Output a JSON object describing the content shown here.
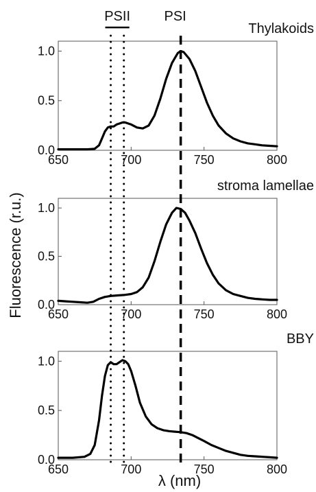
{
  "figure": {
    "ylabel": "Fluorescence (r.u.)",
    "xlabel": "λ (nm)",
    "markers": {
      "psii_label": "PSII",
      "psi_label": "PSI",
      "psii_lines_nm": [
        686,
        695
      ],
      "psi_line_nm": 734
    }
  },
  "chart_data": [
    {
      "type": "line",
      "panel_label": "Thylakoids",
      "xlim": [
        650,
        800
      ],
      "ylim": [
        0,
        1.1
      ],
      "xticks": [
        "650",
        "700",
        "750",
        "800"
      ],
      "yticks": [
        "0.0",
        "0.5",
        "1.0"
      ],
      "series": [
        {
          "color": "#000000",
          "x": [
            650,
            660,
            670,
            675,
            678,
            680,
            682,
            684,
            686,
            688,
            690,
            692,
            694,
            696,
            698,
            700,
            704,
            708,
            712,
            716,
            720,
            724,
            728,
            732,
            734,
            736,
            740,
            744,
            748,
            752,
            756,
            760,
            765,
            770,
            775,
            780,
            785,
            790,
            795,
            800
          ],
          "y": [
            0.01,
            0.01,
            0.01,
            0.015,
            0.05,
            0.12,
            0.19,
            0.23,
            0.24,
            0.24,
            0.26,
            0.27,
            0.28,
            0.28,
            0.27,
            0.26,
            0.23,
            0.22,
            0.25,
            0.35,
            0.52,
            0.72,
            0.88,
            0.98,
            1.0,
            0.99,
            0.92,
            0.8,
            0.64,
            0.48,
            0.35,
            0.25,
            0.17,
            0.12,
            0.09,
            0.07,
            0.06,
            0.05,
            0.045,
            0.04
          ]
        }
      ]
    },
    {
      "type": "line",
      "panel_label": "stroma lamellae",
      "xlim": [
        650,
        800
      ],
      "ylim": [
        0,
        1.1
      ],
      "xticks": [
        "650",
        "700",
        "750",
        "800"
      ],
      "yticks": [
        "0.0",
        "0.5",
        "1.0"
      ],
      "series": [
        {
          "color": "#000000",
          "x": [
            650,
            655,
            660,
            665,
            670,
            674,
            678,
            682,
            686,
            690,
            695,
            700,
            704,
            708,
            712,
            716,
            720,
            724,
            728,
            731,
            734,
            737,
            740,
            744,
            748,
            752,
            756,
            760,
            765,
            770,
            775,
            780,
            785,
            790,
            795,
            800
          ],
          "y": [
            0.04,
            0.035,
            0.03,
            0.025,
            0.02,
            0.03,
            0.06,
            0.08,
            0.09,
            0.095,
            0.1,
            0.11,
            0.13,
            0.18,
            0.28,
            0.45,
            0.65,
            0.83,
            0.95,
            1.0,
            0.99,
            0.95,
            0.87,
            0.74,
            0.58,
            0.43,
            0.31,
            0.22,
            0.15,
            0.11,
            0.09,
            0.07,
            0.06,
            0.055,
            0.05,
            0.05
          ]
        }
      ]
    },
    {
      "type": "line",
      "panel_label": "BBY",
      "xlim": [
        650,
        800
      ],
      "ylim": [
        0,
        1.1
      ],
      "xticks": [
        "650",
        "700",
        "750",
        "800"
      ],
      "yticks": [
        "0.0",
        "0.5",
        "1.0"
      ],
      "series": [
        {
          "color": "#000000",
          "x": [
            650,
            660,
            668,
            672,
            675,
            678,
            680,
            682,
            684,
            686,
            688,
            690,
            692,
            694,
            696,
            698,
            700,
            703,
            706,
            710,
            714,
            718,
            722,
            726,
            730,
            734,
            738,
            742,
            746,
            750,
            755,
            760,
            765,
            770,
            775,
            780,
            785,
            790,
            795,
            800
          ],
          "y": [
            0.02,
            0.02,
            0.03,
            0.06,
            0.15,
            0.4,
            0.65,
            0.85,
            0.96,
            0.99,
            0.97,
            0.97,
            0.99,
            1.01,
            1.0,
            0.97,
            0.9,
            0.75,
            0.58,
            0.44,
            0.36,
            0.32,
            0.3,
            0.29,
            0.285,
            0.28,
            0.27,
            0.25,
            0.22,
            0.19,
            0.15,
            0.12,
            0.09,
            0.07,
            0.05,
            0.04,
            0.035,
            0.03,
            0.025,
            0.02
          ]
        }
      ]
    }
  ]
}
